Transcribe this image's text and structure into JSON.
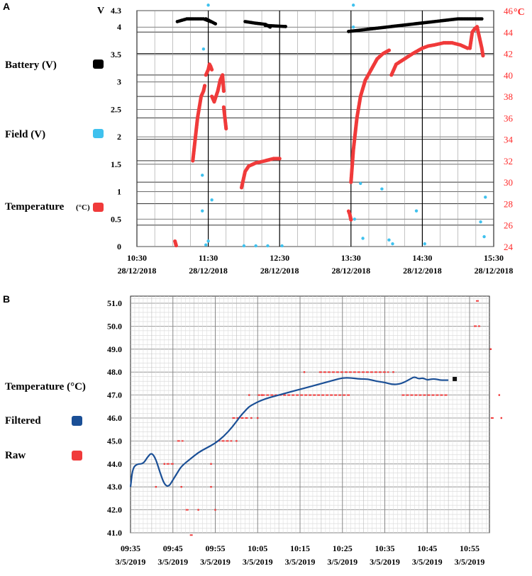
{
  "panels": [
    {
      "letter": "A",
      "legend": [
        {
          "label": "Battery (V)",
          "unit": "",
          "color": "#000000"
        },
        {
          "label": "Field (V)",
          "unit": "",
          "color": "#3fc1ee"
        },
        {
          "label": "Temperature",
          "unit": "(°C)",
          "color": "#f03a3a"
        }
      ]
    },
    {
      "letter": "B",
      "legend": [
        {
          "label": "Temperature (°C)",
          "unit": "",
          "color": ""
        },
        {
          "label": "Filtered",
          "unit": "",
          "color": "#1a4f96"
        },
        {
          "label": "Raw",
          "unit": "",
          "color": "#f03a3a"
        }
      ]
    }
  ],
  "chart_data": [
    {
      "type": "scatter",
      "panel": "A",
      "title": "",
      "y_left_label": "V",
      "y_right_label": "°C",
      "y_left_ticks": [
        "0",
        "0.5",
        "1",
        "1.5",
        "2",
        "2.5",
        "3",
        "3.5",
        "4",
        "4.3"
      ],
      "y_left_tick_values": [
        0,
        0.5,
        1,
        1.5,
        2,
        2.5,
        3,
        3.5,
        4,
        4.3
      ],
      "y_right_ticks": [
        "24",
        "26",
        "28",
        "30",
        "32",
        "34",
        "36",
        "38",
        "40",
        "42",
        "44",
        "46"
      ],
      "y_right_tick_values": [
        24,
        26,
        28,
        30,
        32,
        34,
        36,
        38,
        40,
        42,
        44,
        46
      ],
      "ylim_left": [
        0,
        4.3
      ],
      "ylim_right": [
        24,
        46
      ],
      "x_range_min": [
        0,
        300
      ],
      "x_ticks": [
        {
          "t": 0,
          "time": "10:30",
          "date": "28/12/2018"
        },
        {
          "t": 60,
          "time": "11:30",
          "date": "28/12/2018"
        },
        {
          "t": 120,
          "time": "12:30",
          "date": "28/12/2018"
        },
        {
          "t": 180,
          "time": "13:30",
          "date": "28/12/2018"
        },
        {
          "t": 240,
          "time": "14:30",
          "date": "28/12/2018"
        },
        {
          "t": 300,
          "time": "15:30",
          "date": "28/12/2018"
        }
      ],
      "series": [
        {
          "name": "Battery (V)",
          "axis": "left",
          "segments": [
            {
              "x": [
                34,
                42,
                48,
                56,
                62
              ],
              "y": [
                4.1,
                4.15,
                4.15,
                4.15,
                4.1
              ]
            },
            {
              "x": [
                58,
                66
              ],
              "y": [
                4.15,
                4.06
              ]
            },
            {
              "x": [
                91,
                100,
                108,
                112
              ],
              "y": [
                4.1,
                4.07,
                4.05,
                4.0
              ]
            },
            {
              "x": [
                108,
                125
              ],
              "y": [
                4.03,
                4.01
              ]
            },
            {
              "x": [
                178,
                190,
                210,
                230,
                250,
                270,
                290
              ],
              "y": [
                3.92,
                3.95,
                4.0,
                4.05,
                4.1,
                4.15,
                4.15
              ]
            }
          ]
        },
        {
          "name": "Field (V)",
          "axis": "left",
          "points": [
            [
              60,
              4.4
            ],
            [
              56,
              3.6
            ],
            [
              55,
              1.3
            ],
            [
              55,
              0.65
            ],
            [
              63,
              0.85
            ],
            [
              60,
              0.1
            ],
            [
              58,
              0.03
            ],
            [
              90,
              0.01
            ],
            [
              100,
              0.01
            ],
            [
              110,
              0.01
            ],
            [
              122,
              0.01
            ],
            [
              182,
              4.4
            ],
            [
              182,
              4.0
            ],
            [
              183,
              0.5
            ],
            [
              188,
              1.15
            ],
            [
              190,
              0.15
            ],
            [
              206,
              1.05
            ],
            [
              212,
              0.12
            ],
            [
              215,
              0.05
            ],
            [
              235,
              0.65
            ],
            [
              242,
              0.05
            ],
            [
              289,
              0.45
            ],
            [
              292,
              0.18
            ],
            [
              293,
              0.9
            ]
          ]
        },
        {
          "name": "Temperature (°C)",
          "axis": "right",
          "segments": [
            {
              "x": [
                32,
                33
              ],
              "y": [
                24.5,
                24.1
              ]
            },
            {
              "x": [
                47,
                49,
                51,
                54,
                56,
                57
              ],
              "y": [
                32,
                34,
                36,
                38,
                38.5,
                39
              ]
            },
            {
              "x": [
                58,
                60,
                61,
                62,
                63
              ],
              "y": [
                40,
                40.5,
                41,
                40.8,
                40.5
              ]
            },
            {
              "x": [
                63,
                65,
                68,
                70,
                72,
                73
              ],
              "y": [
                38,
                37.5,
                38.5,
                39.5,
                40,
                38.5
              ]
            },
            {
              "x": [
                73,
                74,
                75
              ],
              "y": [
                37,
                36,
                35
              ]
            },
            {
              "x": [
                88,
                89,
                91,
                94,
                100,
                108,
                115,
                120
              ],
              "y": [
                29.5,
                30,
                31,
                31.5,
                31.8,
                32,
                32.2,
                32.2
              ]
            },
            {
              "x": [
                178,
                179,
                180
              ],
              "y": [
                27.3,
                27,
                26.5
              ]
            },
            {
              "x": [
                180,
                182,
                185,
                188,
                192,
                197,
                202,
                207,
                212
              ],
              "y": [
                30,
                33,
                36,
                38,
                39.5,
                40.5,
                41.5,
                42,
                42.3
              ]
            },
            {
              "x": [
                214,
                218,
                225,
                232,
                240,
                245,
                250,
                258,
                265,
                272,
                278
              ],
              "y": [
                40,
                41,
                41.5,
                42,
                42.5,
                42.7,
                42.8,
                43,
                43,
                42.8,
                42.5
              ]
            },
            {
              "x": [
                280,
                282,
                284,
                286,
                288,
                290,
                291
              ],
              "y": [
                42.5,
                44,
                44.3,
                44.5,
                43.5,
                42.5,
                41.8
              ]
            }
          ]
        }
      ]
    },
    {
      "type": "line",
      "panel": "B",
      "title": "",
      "ylabel": "Temperature (°C)",
      "y_ticks": [
        "41.0",
        "42.0",
        "43.0",
        "44.0",
        "45.0",
        "46.0",
        "47.0",
        "48.0",
        "49.0",
        "50.0",
        "51.0"
      ],
      "y_tick_values": [
        41,
        42,
        43,
        44,
        45,
        46,
        47,
        48,
        49,
        50,
        51
      ],
      "ylim": [
        41,
        51.3
      ],
      "x_range_min": [
        0,
        80
      ],
      "x_ticks": [
        {
          "t": 0,
          "time": "09:35",
          "date": "3/5/2019"
        },
        {
          "t": 10,
          "time": "09:45",
          "date": "3/5/2019"
        },
        {
          "t": 20,
          "time": "09:55",
          "date": "3/5/2019"
        },
        {
          "t": 30,
          "time": "10:05",
          "date": "3/5/2019"
        },
        {
          "t": 40,
          "time": "10:15",
          "date": "3/5/2019"
        },
        {
          "t": 50,
          "time": "10:25",
          "date": "3/5/2019"
        },
        {
          "t": 60,
          "time": "10:35",
          "date": "3/5/2019"
        },
        {
          "t": 70,
          "time": "10:45",
          "date": "3/5/2019"
        },
        {
          "t": 80,
          "time": "10:55",
          "date": "3/5/2019"
        }
      ],
      "series": [
        {
          "name": "Filtered",
          "x": [
            0,
            0.5,
            1.5,
            3,
            4,
            5,
            6,
            7,
            8,
            9,
            10,
            11,
            12,
            14,
            16,
            18,
            20,
            22,
            24,
            26,
            27,
            28,
            29,
            30,
            32,
            34,
            36,
            38,
            40,
            42,
            44,
            46,
            48,
            50,
            52,
            54,
            56,
            58,
            60,
            62,
            64,
            66,
            67,
            68,
            69,
            70,
            71,
            72,
            73,
            74,
            75
          ],
          "y": [
            43.0,
            43.8,
            44.0,
            44.0,
            44.3,
            44.5,
            44.2,
            43.6,
            43.1,
            43.0,
            43.3,
            43.6,
            43.9,
            44.2,
            44.5,
            44.7,
            44.9,
            45.2,
            45.6,
            46.1,
            46.3,
            46.5,
            46.6,
            46.7,
            46.85,
            46.95,
            47.05,
            47.15,
            47.25,
            47.35,
            47.45,
            47.55,
            47.65,
            47.75,
            47.75,
            47.7,
            47.7,
            47.6,
            47.55,
            47.45,
            47.5,
            47.7,
            47.8,
            47.7,
            47.75,
            47.65,
            47.7,
            47.7,
            47.65,
            47.65,
            47.65
          ]
        },
        {
          "name": "Raw",
          "segments": [
            {
              "x": [
                8.5,
                10.5
              ],
              "y": [
                44.0,
                44.0
              ]
            },
            {
              "x": [
                11,
                12.5
              ],
              "y": [
                45.0,
                45.0
              ]
            },
            {
              "x": [
                13,
                14
              ],
              "y": [
                42.0,
                42.0
              ]
            },
            {
              "x": [
                14,
                15
              ],
              "y": [
                40.9,
                40.9
              ]
            },
            {
              "x": [
                20.5,
                24
              ],
              "y": [
                45.0,
                45.0
              ]
            },
            {
              "x": [
                24,
                28
              ],
              "y": [
                46.0,
                46.0
              ]
            },
            {
              "x": [
                30,
                34
              ],
              "y": [
                47.0,
                47.0
              ]
            },
            {
              "x": [
                34,
                52
              ],
              "y": [
                47.0,
                47.0
              ]
            },
            {
              "x": [
                44.5,
                61
              ],
              "y": [
                48.0,
                48.0
              ]
            },
            {
              "x": [
                64,
                75
              ],
              "y": [
                47.0,
                47.0
              ]
            },
            {
              "x": [
                81,
                82.5
              ],
              "y": [
                50.0,
                50.0
              ]
            },
            {
              "x": [
                81.5,
                82.5
              ],
              "y": [
                51.1,
                51.1
              ]
            },
            {
              "x": [
                85,
                86
              ],
              "y": [
                46.0,
                46.0
              ]
            }
          ],
          "points": [
            [
              6,
              43.0
            ],
            [
              8,
              44.0
            ],
            [
              12,
              43.0
            ],
            [
              16,
              42.0
            ],
            [
              20,
              42.0
            ],
            [
              19,
              43.0
            ],
            [
              25,
              45.0
            ],
            [
              28.5,
              46.0
            ],
            [
              30,
              46.0
            ],
            [
              28,
              47.0
            ],
            [
              31,
              47.0
            ],
            [
              41,
              48.0
            ],
            [
              62,
              48.0
            ],
            [
              85,
              49.0
            ],
            [
              87,
              47.0
            ],
            [
              87.5,
              46.0
            ],
            [
              19,
              44.0
            ]
          ]
        },
        {
          "name": "Filtered end marker",
          "marker_only": true,
          "points": [
            [
              76.5,
              47.7
            ]
          ]
        }
      ]
    }
  ]
}
